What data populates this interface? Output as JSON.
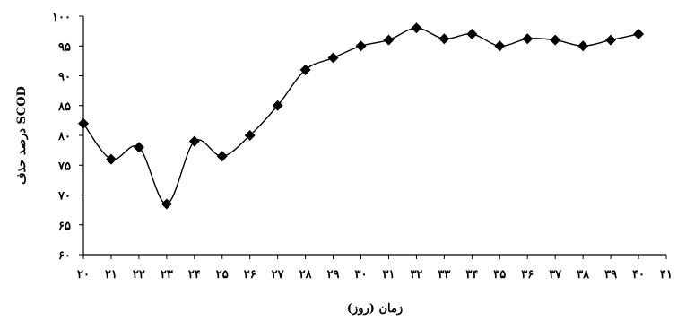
{
  "chart_data": {
    "type": "line",
    "title": "",
    "xlabel": "زمان (روز)",
    "ylabel": "درصد حذف SCOD",
    "xlim": [
      20,
      41
    ],
    "ylim": [
      60,
      100
    ],
    "x_ticks": [
      {
        "value": 20,
        "label": "۲۰"
      },
      {
        "value": 21,
        "label": "۲۱"
      },
      {
        "value": 22,
        "label": "۲۲"
      },
      {
        "value": 23,
        "label": "۲۳"
      },
      {
        "value": 24,
        "label": "۲۴"
      },
      {
        "value": 25,
        "label": "۲۵"
      },
      {
        "value": 26,
        "label": "۲۶"
      },
      {
        "value": 27,
        "label": "۲۷"
      },
      {
        "value": 28,
        "label": "۲۸"
      },
      {
        "value": 29,
        "label": "۲۹"
      },
      {
        "value": 30,
        "label": "۳۰"
      },
      {
        "value": 31,
        "label": "۳۱"
      },
      {
        "value": 32,
        "label": "۳۲"
      },
      {
        "value": 33,
        "label": "۳۳"
      },
      {
        "value": 34,
        "label": "۳۴"
      },
      {
        "value": 35,
        "label": "۳۵"
      },
      {
        "value": 36,
        "label": "۳۶"
      },
      {
        "value": 37,
        "label": "۳۷"
      },
      {
        "value": 38,
        "label": "۳۸"
      },
      {
        "value": 39,
        "label": "۳۹"
      },
      {
        "value": 40,
        "label": "۴۰"
      },
      {
        "value": 41,
        "label": "۴۱"
      }
    ],
    "y_ticks": [
      {
        "value": 60,
        "label": "۶۰"
      },
      {
        "value": 65,
        "label": "۶۵"
      },
      {
        "value": 70,
        "label": "۷۰"
      },
      {
        "value": 75,
        "label": "۷۵"
      },
      {
        "value": 80,
        "label": "۸۰"
      },
      {
        "value": 85,
        "label": "۸۵"
      },
      {
        "value": 90,
        "label": "۹۰"
      },
      {
        "value": 95,
        "label": "۹۵"
      },
      {
        "value": 100,
        "label": "۱۰۰"
      }
    ],
    "grid": false,
    "legend": "none",
    "series": [
      {
        "name": "",
        "marker": "diamond",
        "smooth": true,
        "x": [
          20,
          21,
          22,
          23,
          24,
          25,
          26,
          27,
          28,
          29,
          30,
          31,
          32,
          33,
          34,
          35,
          36,
          37,
          38,
          39,
          40
        ],
        "values": [
          82,
          76,
          78,
          68.5,
          79,
          76.5,
          80,
          85,
          91,
          93,
          95,
          96,
          98,
          96.2,
          97,
          95,
          96.2,
          96,
          95,
          96,
          97
        ]
      }
    ]
  }
}
